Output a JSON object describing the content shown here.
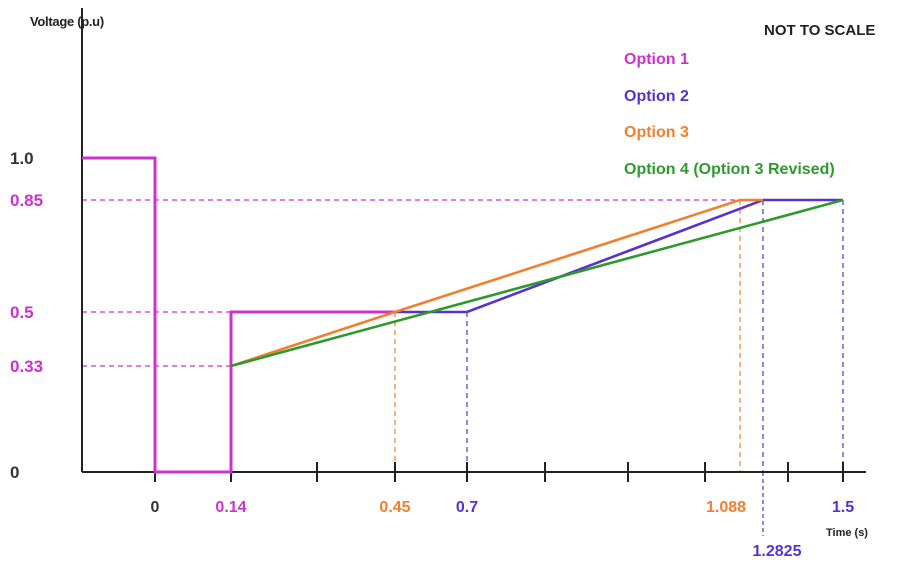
{
  "chart_data": {
    "type": "line",
    "note": "NOT TO SCALE",
    "ylabel": "Voltage (p.u)",
    "xlabel": "Time (s)",
    "x_ticks": [
      "0",
      "0.14",
      "0.45",
      "0.7",
      "1.088",
      "1.2825",
      "1.5"
    ],
    "y_ticks": [
      "0",
      "0.33",
      "0.5",
      "0.85",
      "1.0"
    ],
    "series": [
      {
        "name": "Option 1",
        "color": "#cc33cc",
        "points": [
          [
            -0.2,
            1.0
          ],
          [
            0,
            1.0
          ],
          [
            0,
            0
          ],
          [
            0.14,
            0
          ],
          [
            0.14,
            0.5
          ],
          [
            0.45,
            0.5
          ]
        ]
      },
      {
        "name": "Option 2",
        "color": "#5533cc",
        "points": [
          [
            0.45,
            0.5
          ],
          [
            0.7,
            0.5
          ],
          [
            1.2825,
            0.85
          ],
          [
            1.5,
            0.85
          ]
        ]
      },
      {
        "name": "Option 3",
        "color": "#f08030",
        "points": [
          [
            0.14,
            0.33
          ],
          [
            0.45,
            0.5
          ],
          [
            1.088,
            0.85
          ],
          [
            1.2825,
            0.85
          ]
        ]
      },
      {
        "name": "Option 4 (Option 3 Revised)",
        "color": "#2e9a2e",
        "points": [
          [
            0.14,
            0.33
          ],
          [
            1.5,
            0.85
          ]
        ]
      }
    ]
  }
}
